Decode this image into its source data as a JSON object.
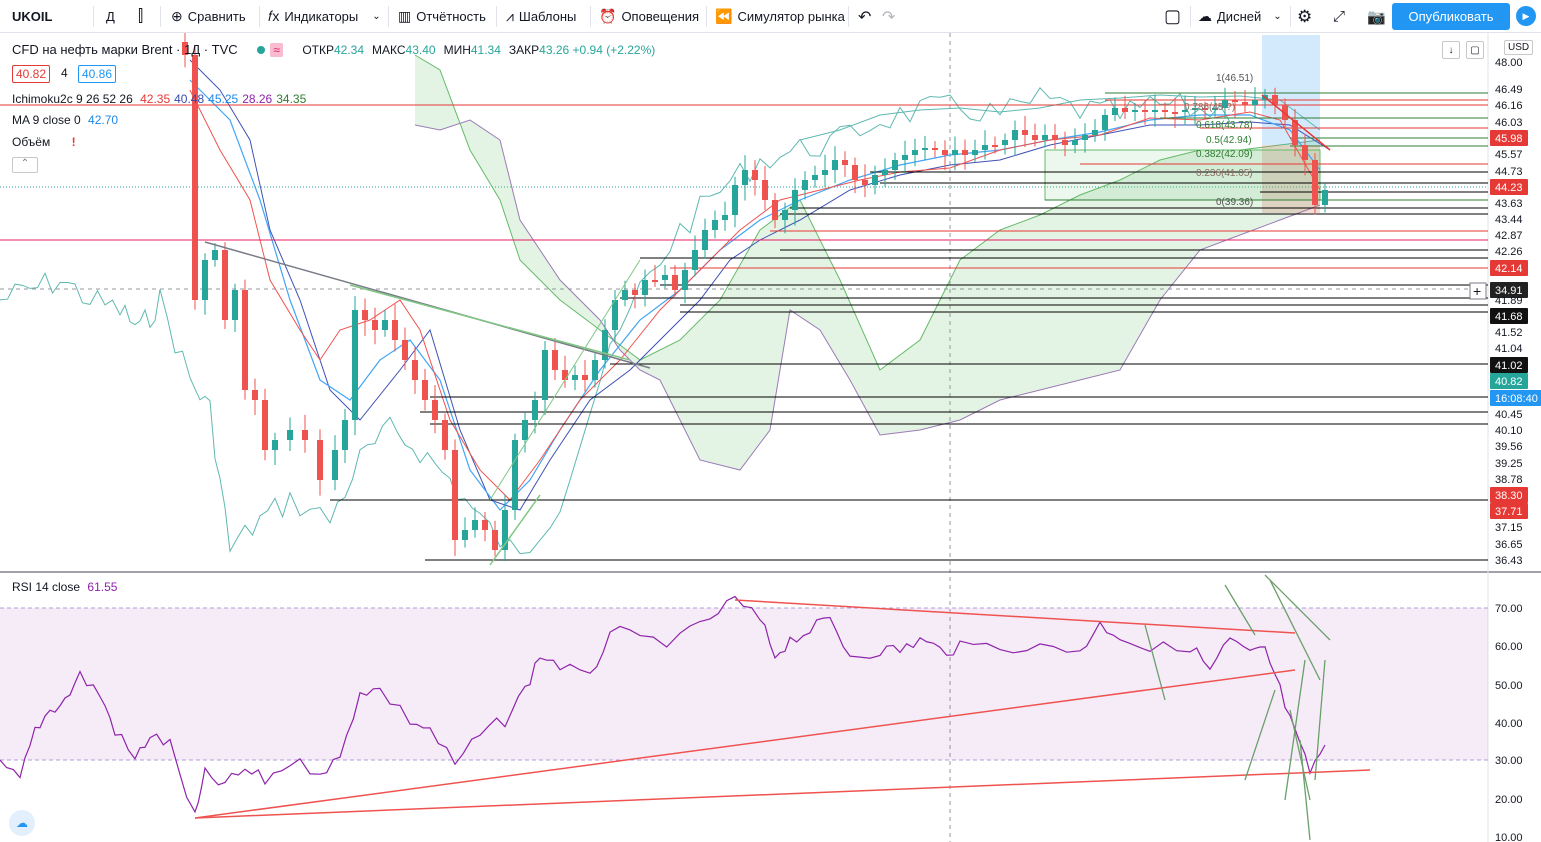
{
  "toolbar": {
    "symbol": "UKOIL",
    "interval": "Д",
    "compare": "Сравнить",
    "indicators": "Индикаторы",
    "financials": "Отчётность",
    "templates": "Шаблоны",
    "alerts": "Оповещения",
    "replay": "Симулятор рынка",
    "layout_name": "Дисней",
    "publish": "Опубликовать"
  },
  "legend": {
    "title": "CFD на нефть марки Brent · 1Д · TVC",
    "ohlc": [
      {
        "k": "ОТКР",
        "v": "42.34"
      },
      {
        "k": "МАКС",
        "v": "43.40"
      },
      {
        "k": "МИН",
        "v": "41.34"
      },
      {
        "k": "ЗАКР",
        "v": "43.26 +0.94 (+2.22%)"
      }
    ],
    "bid": "40.82",
    "spread": "4",
    "ask": "40.86",
    "ichimoku_name": "Ichimoku2c 9 26 52 26",
    "ichimoku_values": [
      {
        "v": "42.35",
        "color": "#e53935"
      },
      {
        "v": "40.48",
        "color": "#3949ab"
      },
      {
        "v": "45.25",
        "color": "#1e88e5"
      },
      {
        "v": "28.26",
        "color": "#8e24aa"
      },
      {
        "v": "34.35",
        "color": "#2e7d32"
      }
    ],
    "ma_name": "MA 9 close 0",
    "ma_value": "42.70",
    "volume_label": "Объём",
    "rsi_name": "RSI 14 close",
    "rsi_value": "61.55",
    "currency": "USD"
  },
  "chart_data": [
    {
      "type": "candlestick",
      "title": "CFD на нефть марки Brent · 1Д · TVC",
      "y_axis_ticks": [
        "48.00",
        "46.49",
        "46.16",
        "46.03",
        "45.98",
        "45.57",
        "44.73",
        "44.23",
        "43.63",
        "43.44",
        "42.87",
        "42.26",
        "42.14",
        "34.91",
        "41.89",
        "41.68",
        "41.52",
        "41.04",
        "41.02",
        "40.82",
        "16:08:40",
        "40.45",
        "40.10",
        "39.56",
        "39.25",
        "38.78",
        "38.30",
        "37.71",
        "37.15",
        "36.65",
        "36.43"
      ],
      "price_badges": [
        {
          "label": "45.98",
          "color": "#e53935"
        },
        {
          "label": "44.23",
          "color": "#e53935"
        },
        {
          "label": "42.14",
          "color": "#e53935"
        },
        {
          "label": "34.91",
          "color": "#222222"
        },
        {
          "label": "41.68",
          "color": "#111111"
        },
        {
          "label": "41.02",
          "color": "#111111"
        },
        {
          "label": "40.82",
          "color": "#26a69a"
        },
        {
          "label": "16:08:40",
          "color": "#2196f3"
        },
        {
          "label": "38.30",
          "color": "#e53935"
        },
        {
          "label": "37.71",
          "color": "#e53935"
        }
      ],
      "fibonacci": [
        "1(46.51)",
        "0.786(45.?)",
        "0.618(43.78)",
        "0.5(42.94)",
        "0.382(42.09)",
        "0.236(41.05)",
        "0(39.36)"
      ],
      "last_close": 43.26,
      "series_note": "price action from ~36.4 low rising to ~46.5 high then pulling back to ~43.3"
    },
    {
      "type": "line",
      "title": "RSI 14 close",
      "y_ticks": [
        "70.00",
        "60.00",
        "50.00",
        "40.00",
        "30.00",
        "20.00",
        "10.00"
      ],
      "band": [
        30,
        70
      ],
      "last_value": 61.55
    }
  ]
}
